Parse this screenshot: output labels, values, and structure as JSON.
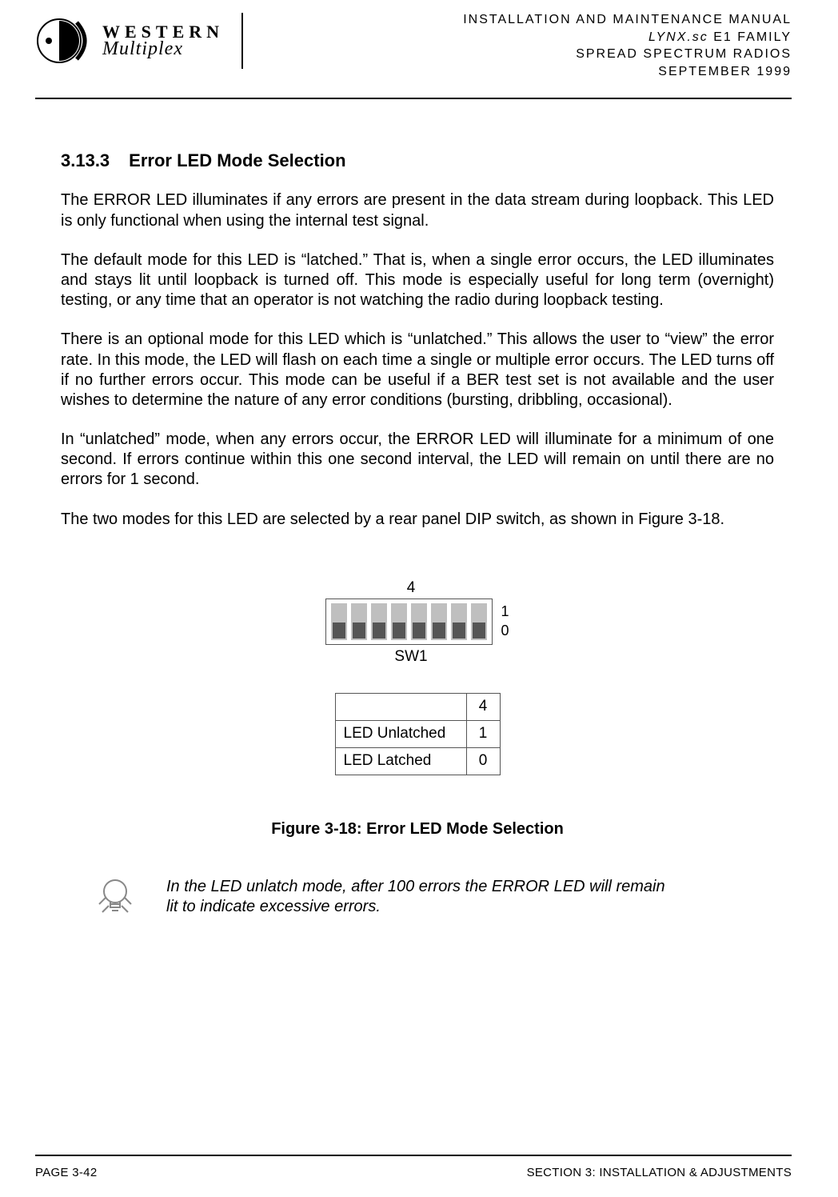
{
  "header": {
    "logo": {
      "line1": "WESTERN",
      "line2": "Multiplex"
    },
    "right": {
      "line1": "INSTALLATION AND MAINTENANCE MANUAL",
      "line2_prefix": "LYNX.sc",
      "line2_suffix": " E1 FAMILY",
      "line3": "SPREAD SPECTRUM RADIOS",
      "line4": "SEPTEMBER 1999"
    }
  },
  "section": {
    "number": "3.13.3",
    "title": "Error LED Mode Selection"
  },
  "paragraphs": {
    "p1": "The ERROR LED illuminates if any errors are present in the data stream during loopback. This LED is only functional when using the internal test signal.",
    "p2": "The default mode for this LED is “latched.” That is, when a single error occurs, the LED illuminates and stays lit until loopback is turned off. This mode is especially useful for long term (overnight) testing, or any time that an operator is not watching the radio during loopback testing.",
    "p3": "There is an optional mode for this LED which is “unlatched.” This allows the user to “view” the error rate. In this mode, the LED will flash on each time a single or multiple error occurs. The LED turns off if no further errors occur. This mode can be useful if a BER test set is not available and the user wishes to determine the nature of any error conditions (bursting, dribbling, occasional).",
    "p4": "In “unlatched” mode, when any errors occur, the ERROR LED will illuminate for a minimum of one second. If errors continue within this one second interval, the LED will remain on until there are no errors for 1 second.",
    "p5": "The two modes for this LED are selected by a rear panel DIP switch, as shown in Figure 3-18."
  },
  "figure": {
    "dip": {
      "top_label": "4",
      "name": "SW1",
      "side_hi": "1",
      "side_lo": "0",
      "switch_count": 8
    },
    "table": {
      "header_val": "4",
      "rows": [
        {
          "label": "LED Unlatched",
          "val": "1"
        },
        {
          "label": "LED Latched",
          "val": "0"
        }
      ]
    },
    "caption": "Figure 3-18: Error LED Mode Selection"
  },
  "note": "In the LED unlatch mode, after 100 errors the ERROR LED will remain lit to indicate excessive errors.",
  "footer": {
    "left": "PAGE 3-42",
    "right": "SECTION 3: INSTALLATION & ADJUSTMENTS"
  },
  "style": {
    "body_font_size_pt": 15,
    "heading_font_size_pt": 16,
    "text_color": "#000000",
    "background_color": "#ffffff",
    "rule_color": "#000000",
    "dip_slot_color": "#bfbfbf",
    "dip_thumb_color": "#555555",
    "table_border_color": "#555555"
  }
}
